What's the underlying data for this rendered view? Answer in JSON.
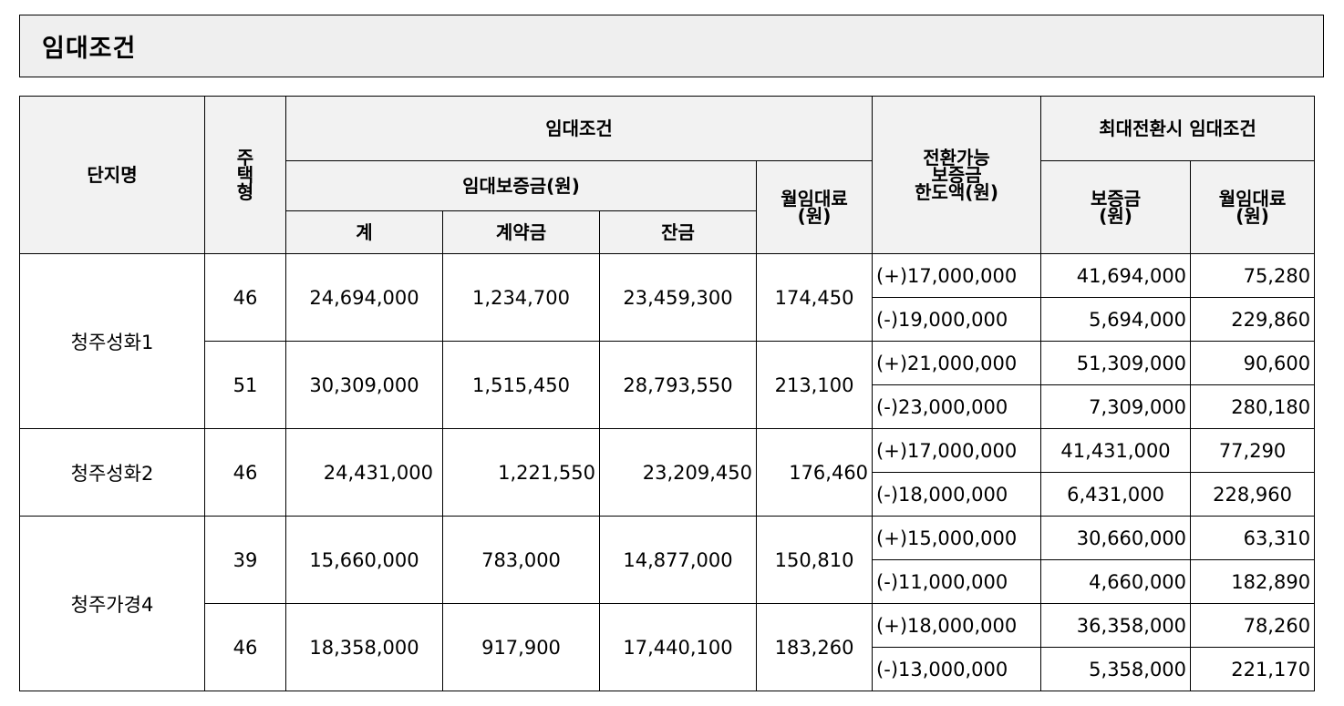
{
  "title": "임대조건",
  "headers": {
    "complex": "단지명",
    "housing_type_chars": [
      "주",
      "택",
      "형"
    ],
    "rental_conditions": "임대조건",
    "deposit": "임대보증금(원)",
    "total": "계",
    "contract": "계약금",
    "balance": "잔금",
    "monthly_rent_1": "월임대료",
    "monthly_rent_2": "(원)",
    "convertible_1": "전환가능",
    "convertible_2": "보증금",
    "convertible_3": "한도액(원)",
    "max_conversion": "최대전환시  임대조건",
    "max_deposit_1": "보증금",
    "max_deposit_2": "(원)",
    "max_rent_1": "월임대료",
    "max_rent_2": "(원)"
  },
  "complexes": [
    {
      "name": "청주성화1",
      "types": [
        {
          "type": "46",
          "total": "24,694,000",
          "contract": "1,234,700",
          "balance": "23,459,300",
          "rent": "174,450",
          "conversions": [
            {
              "limit": "(+)17,000,000",
              "deposit": "41,694,000",
              "rent": "75,280"
            },
            {
              "limit": "(-)19,000,000",
              "deposit": "5,694,000",
              "rent": "229,860"
            }
          ]
        },
        {
          "type": "51",
          "total": "30,309,000",
          "contract": "1,515,450",
          "balance": "28,793,550",
          "rent": "213,100",
          "conversions": [
            {
              "limit": "(+)21,000,000",
              "deposit": "51,309,000",
              "rent": "90,600"
            },
            {
              "limit": "(-)23,000,000",
              "deposit": "7,309,000",
              "rent": "280,180"
            }
          ]
        }
      ]
    },
    {
      "name": "청주성화2",
      "types": [
        {
          "type": "46",
          "total": "24,431,000",
          "contract": "1,221,550",
          "balance": "23,209,450",
          "rent": "176,460",
          "conversions": [
            {
              "limit": "(+)17,000,000",
              "deposit": "41,431,000",
              "rent": "77,290"
            },
            {
              "limit": "(-)18,000,000",
              "deposit": "6,431,000",
              "rent": "228,960"
            }
          ]
        }
      ]
    },
    {
      "name": "청주가경4",
      "types": [
        {
          "type": "39",
          "total": "15,660,000",
          "contract": "783,000",
          "balance": "14,877,000",
          "rent": "150,810",
          "conversions": [
            {
              "limit": "(+)15,000,000",
              "deposit": "30,660,000",
              "rent": "63,310"
            },
            {
              "limit": "(-)11,000,000",
              "deposit": "4,660,000",
              "rent": "182,890"
            }
          ]
        },
        {
          "type": "46",
          "total": "18,358,000",
          "contract": "917,900",
          "balance": "17,440,100",
          "rent": "183,260",
          "conversions": [
            {
              "limit": "(+)18,000,000",
              "deposit": "36,358,000",
              "rent": "78,260"
            },
            {
              "limit": "(-)13,000,000",
              "deposit": "5,358,000",
              "rent": "221,170"
            }
          ]
        }
      ]
    }
  ]
}
